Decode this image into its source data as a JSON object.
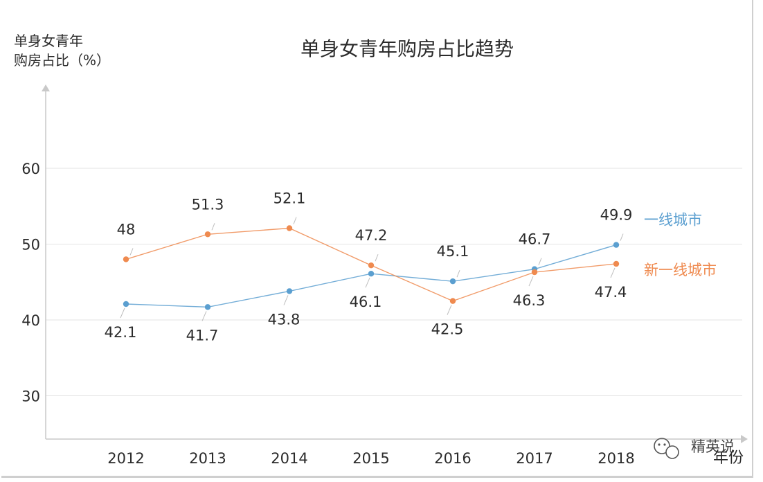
{
  "chart_data": {
    "type": "line",
    "title": "单身女青年购房占比趋势",
    "ylabel_line1": "单身女青年",
    "ylabel_line2": "购房占比（%）",
    "xlabel": "年份",
    "categories": [
      "2012",
      "2013",
      "2014",
      "2015",
      "2016",
      "2017",
      "2018"
    ],
    "ylim": [
      25,
      60
    ],
    "yticks": [
      30,
      40,
      50,
      60
    ],
    "grid": true,
    "legend": "right",
    "series": [
      {
        "name": "一线城市",
        "color": "#5b9fd0",
        "values": [
          42.1,
          41.7,
          43.8,
          46.1,
          45.1,
          46.7,
          49.9
        ],
        "labels": [
          "42.1",
          "41.7",
          "43.8",
          "46.1",
          "45.1",
          "46.7",
          "49.9"
        ]
      },
      {
        "name": "新一线城市",
        "color": "#ef8a4f",
        "values": [
          48,
          51.3,
          52.1,
          47.2,
          42.5,
          46.3,
          47.4
        ],
        "labels": [
          "48",
          "51.3",
          "52.1",
          "47.2",
          "42.5",
          "46.3",
          "47.4"
        ]
      }
    ]
  },
  "watermark": {
    "text": "精英说",
    "icon": "wechat-icon"
  }
}
